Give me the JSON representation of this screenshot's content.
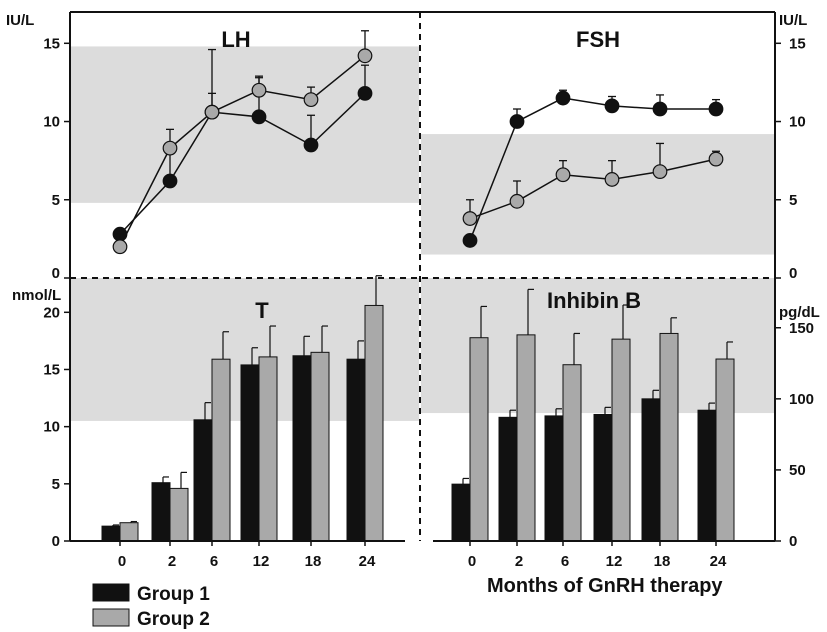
{
  "chart_data": [
    {
      "id": "lh",
      "type": "line",
      "title": "LH",
      "ylabel": "IU/L",
      "ylim": [
        0,
        17
      ],
      "yticks": [
        0,
        5,
        10,
        15
      ],
      "normal_range": [
        4.8,
        14.8
      ],
      "x": [
        0,
        2,
        6,
        12,
        18,
        24
      ],
      "series": [
        {
          "name": "Group 1",
          "color": "#111111",
          "values": [
            2.8,
            6.2,
            10.6,
            10.3,
            8.5,
            11.8
          ],
          "err": [
            0,
            1.8,
            4.0,
            2.5,
            1.9,
            1.8
          ]
        },
        {
          "name": "Group 2",
          "color": "#a9a9a9",
          "values": [
            2.0,
            8.3,
            10.6,
            12.0,
            11.4,
            14.2
          ],
          "err": [
            0.8,
            1.2,
            1.2,
            0.9,
            0.8,
            1.6
          ]
        }
      ]
    },
    {
      "id": "fsh",
      "type": "line",
      "title": "FSH",
      "ylabel": "IU/L",
      "ylim": [
        0,
        17
      ],
      "yticks": [
        0,
        5,
        10,
        15
      ],
      "normal_range": [
        1.5,
        9.2
      ],
      "x": [
        0,
        2,
        6,
        12,
        18,
        24
      ],
      "series": [
        {
          "name": "Group 1",
          "color": "#111111",
          "values": [
            2.4,
            10.0,
            11.5,
            11.0,
            10.8,
            10.8
          ],
          "err": [
            0,
            0.8,
            0.5,
            0.6,
            0.9,
            0.6
          ]
        },
        {
          "name": "Group 2",
          "color": "#a9a9a9",
          "values": [
            3.8,
            4.9,
            6.6,
            6.3,
            6.8,
            7.6
          ],
          "err": [
            1.2,
            1.3,
            0.9,
            1.2,
            1.8,
            0.5
          ]
        }
      ]
    },
    {
      "id": "t",
      "type": "bar",
      "title": "T",
      "ylabel": "nmol/L",
      "ylim": [
        0,
        23
      ],
      "yticks": [
        0,
        5,
        10,
        15,
        20
      ],
      "normal_range": [
        10.5,
        23
      ],
      "categories": [
        "0",
        "2",
        "6",
        "12",
        "18",
        "24"
      ],
      "series": [
        {
          "name": "Group 1",
          "color": "#111111",
          "values": [
            1.3,
            5.1,
            10.6,
            15.4,
            16.2,
            15.9
          ],
          "err": [
            0.1,
            0.5,
            1.5,
            1.5,
            1.7,
            1.6
          ]
        },
        {
          "name": "Group 2",
          "color": "#a9a9a9",
          "values": [
            1.6,
            4.6,
            15.9,
            16.1,
            16.5,
            20.6
          ],
          "err": [
            0.1,
            1.4,
            2.4,
            2.7,
            2.3,
            2.6
          ]
        }
      ]
    },
    {
      "id": "inhb",
      "type": "bar",
      "title": "Inhibin B",
      "ylabel": "pg/dL",
      "ylim": [
        0,
        185
      ],
      "yticks": [
        0,
        50,
        100,
        150
      ],
      "normal_range": [
        90,
        185
      ],
      "categories": [
        "0",
        "2",
        "6",
        "12",
        "18",
        "24"
      ],
      "series": [
        {
          "name": "Group 1",
          "color": "#111111",
          "values": [
            40,
            87,
            88,
            89,
            100,
            92
          ],
          "err": [
            4,
            5,
            5,
            5,
            6,
            5
          ]
        },
        {
          "name": "Group 2",
          "color": "#a9a9a9",
          "values": [
            143,
            145,
            124,
            142,
            146,
            128
          ],
          "err": [
            22,
            32,
            22,
            24,
            11,
            12
          ]
        }
      ]
    }
  ],
  "x_axis_title": "Months of GnRH therapy",
  "legend": [
    {
      "label": "Group 1",
      "color": "#111111"
    },
    {
      "label": "Group 2",
      "color": "#a9a9a9"
    }
  ],
  "colors": {
    "normal_band": "#dcdcdc",
    "axis": "#111111"
  }
}
